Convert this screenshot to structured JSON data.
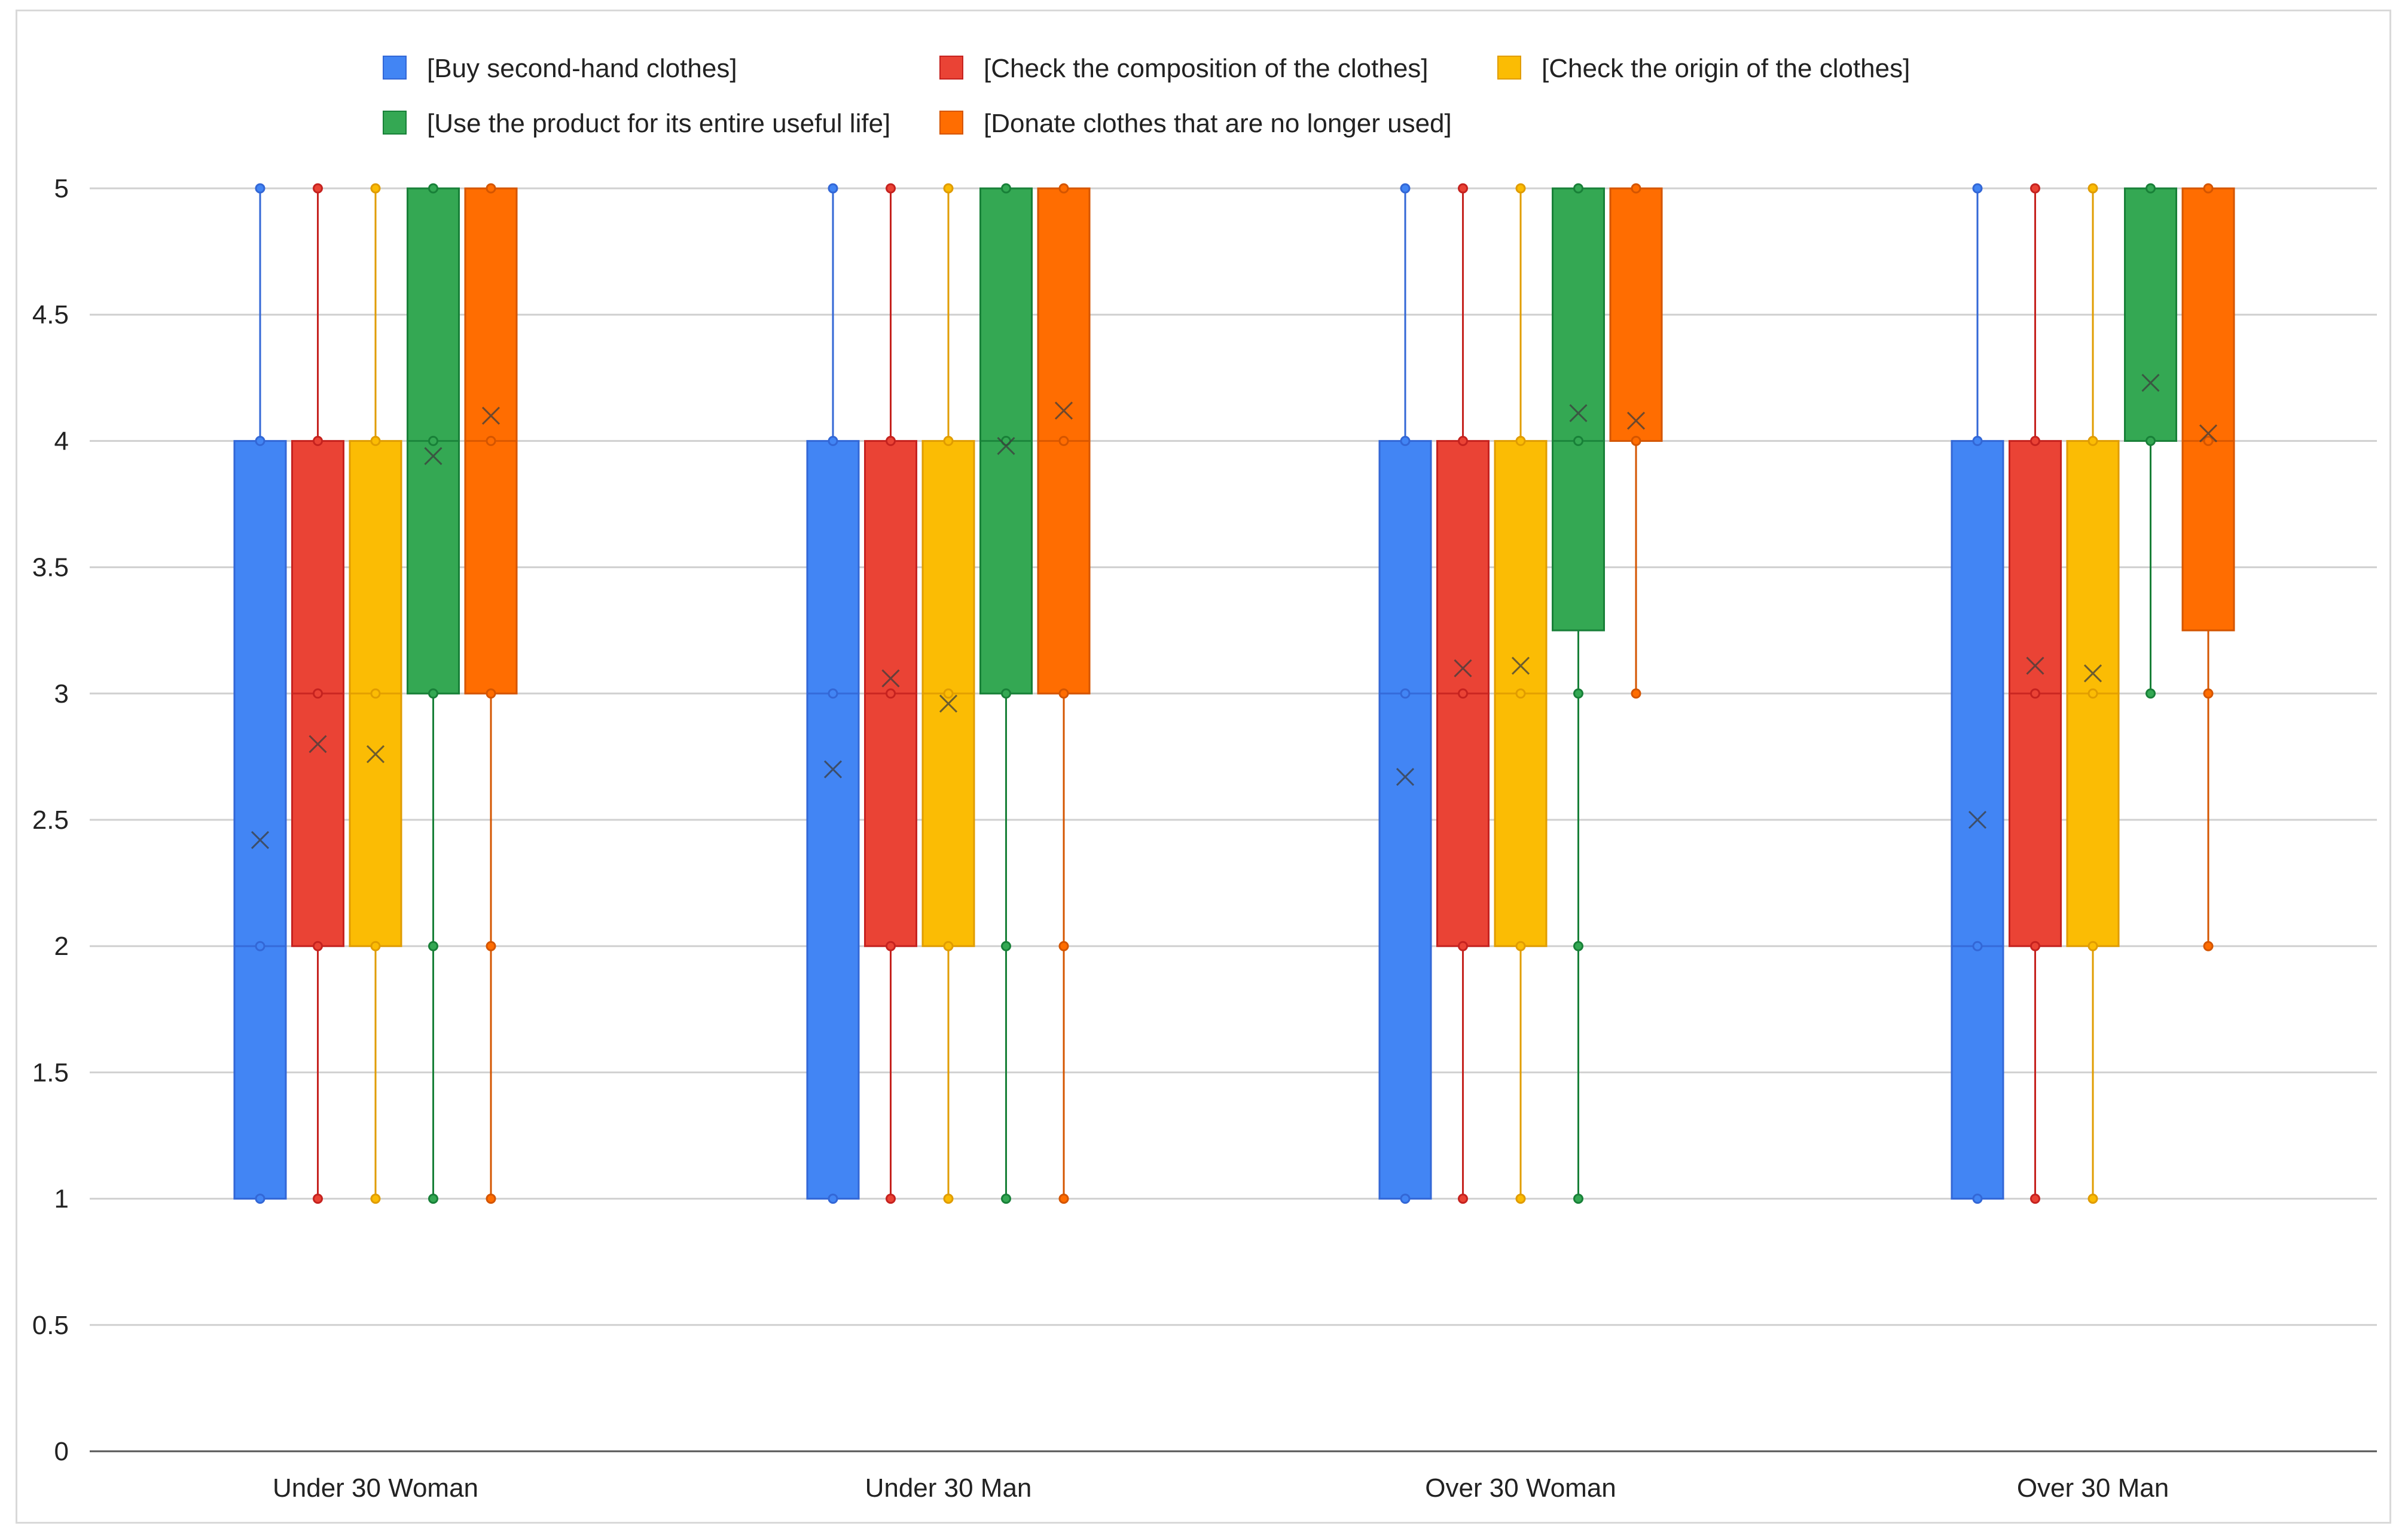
{
  "chart_data": {
    "type": "boxplot",
    "title": "",
    "xlabel": "",
    "ylabel": "",
    "ylim": [
      0,
      5
    ],
    "yticks": [
      0,
      0.5,
      1,
      1.5,
      2,
      2.5,
      3,
      3.5,
      4,
      4.5,
      5
    ],
    "ytick_labels": [
      "0",
      "0.5",
      "1",
      "1.5",
      "2",
      "2.5",
      "3",
      "3.5",
      "4",
      "4.5",
      "5"
    ],
    "grid": true,
    "legend_position": "top",
    "categories": [
      "Under 30 Woman",
      "Under 30 Man",
      "Over 30 Woman",
      "Over 30 Man"
    ],
    "series": [
      {
        "name": "[Buy second-hand clothes]",
        "color": "#4285F4",
        "stroke": "#3367d6",
        "boxes": [
          {
            "min": 1,
            "q1": 1,
            "median": 2,
            "q3": 4,
            "max": 5,
            "mean": 2.42,
            "points": [
              1,
              2,
              4,
              5
            ]
          },
          {
            "min": 1,
            "q1": 1,
            "median": 3,
            "q3": 4,
            "max": 5,
            "mean": 2.7,
            "points": [
              1,
              3,
              4,
              5
            ]
          },
          {
            "min": 1,
            "q1": 1,
            "median": 3,
            "q3": 4,
            "max": 5,
            "mean": 2.67,
            "points": [
              1,
              3,
              4,
              5
            ]
          },
          {
            "min": 1,
            "q1": 1,
            "median": 2,
            "q3": 4,
            "max": 5,
            "mean": 2.5,
            "points": [
              1,
              2,
              4,
              5
            ]
          }
        ]
      },
      {
        "name": "[Check the composition of the clothes]",
        "color": "#EA4335",
        "stroke": "#c5221f",
        "boxes": [
          {
            "min": 1,
            "q1": 2,
            "median": 3,
            "q3": 4,
            "max": 5,
            "mean": 2.8,
            "points": [
              1,
              2,
              3,
              4,
              5
            ]
          },
          {
            "min": 1,
            "q1": 2,
            "median": 3,
            "q3": 4,
            "max": 5,
            "mean": 3.06,
            "points": [
              1,
              2,
              3,
              4,
              5
            ]
          },
          {
            "min": 1,
            "q1": 2,
            "median": 3,
            "q3": 4,
            "max": 5,
            "mean": 3.1,
            "points": [
              1,
              2,
              3,
              4,
              5
            ]
          },
          {
            "min": 1,
            "q1": 2,
            "median": 3,
            "q3": 4,
            "max": 5,
            "mean": 3.11,
            "points": [
              1,
              2,
              3,
              4,
              5
            ]
          }
        ]
      },
      {
        "name": "[Check the origin of the clothes]",
        "color": "#FBBC04",
        "stroke": "#e09c00",
        "boxes": [
          {
            "min": 1,
            "q1": 2,
            "median": 3,
            "q3": 4,
            "max": 5,
            "mean": 2.76,
            "points": [
              1,
              2,
              3,
              4,
              5
            ]
          },
          {
            "min": 1,
            "q1": 2,
            "median": 3,
            "q3": 4,
            "max": 5,
            "mean": 2.96,
            "points": [
              1,
              2,
              3,
              4,
              5
            ]
          },
          {
            "min": 1,
            "q1": 2,
            "median": 3,
            "q3": 4,
            "max": 5,
            "mean": 3.11,
            "points": [
              1,
              2,
              3,
              4,
              5
            ]
          },
          {
            "min": 1,
            "q1": 2,
            "median": 3,
            "q3": 4,
            "max": 5,
            "mean": 3.08,
            "points": [
              1,
              2,
              3,
              4,
              5
            ]
          }
        ]
      },
      {
        "name": "[Use the product for its entire useful life]",
        "color": "#34A853",
        "stroke": "#188038",
        "boxes": [
          {
            "min": 1,
            "q1": 3,
            "median": 4,
            "q3": 5,
            "max": 5,
            "mean": 3.94,
            "points": [
              1,
              2,
              3,
              4,
              5
            ]
          },
          {
            "min": 1,
            "q1": 3,
            "median": 4,
            "q3": 5,
            "max": 5,
            "mean": 3.98,
            "points": [
              1,
              2,
              3,
              4,
              5
            ]
          },
          {
            "min": 1,
            "q1": 3.25,
            "median": 4,
            "q3": 5,
            "max": 5,
            "mean": 4.11,
            "points": [
              1,
              2,
              3,
              4,
              5
            ]
          },
          {
            "min": 3,
            "q1": 4,
            "median": 5,
            "q3": 5,
            "max": 5,
            "mean": 4.23,
            "points": [
              3,
              4,
              5
            ]
          }
        ]
      },
      {
        "name": "[Donate clothes that are no longer used]",
        "color": "#FF6D01",
        "stroke": "#d45500",
        "boxes": [
          {
            "min": 1,
            "q1": 3,
            "median": 4,
            "q3": 5,
            "max": 5,
            "mean": 4.1,
            "points": [
              1,
              2,
              3,
              4,
              5
            ]
          },
          {
            "min": 1,
            "q1": 3,
            "median": 4,
            "q3": 5,
            "max": 5,
            "mean": 4.12,
            "points": [
              1,
              2,
              3,
              4,
              5
            ]
          },
          {
            "min": 3,
            "q1": 4,
            "median": 5,
            "q3": 5,
            "max": 5,
            "mean": 4.08,
            "points": [
              3,
              4,
              5
            ]
          },
          {
            "min": 2,
            "q1": 3.25,
            "median": 4,
            "q3": 5,
            "max": 5,
            "mean": 4.03,
            "points": [
              2,
              3,
              4,
              5
            ]
          }
        ]
      }
    ]
  }
}
